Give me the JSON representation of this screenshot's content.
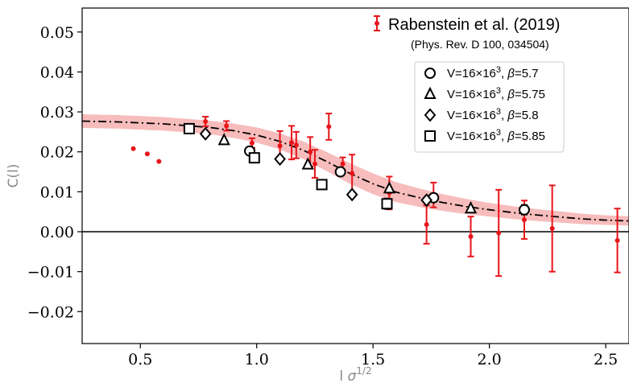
{
  "chart_data": {
    "type": "scatter",
    "xlabel": "l σ^1/2",
    "ylabel": "C(l)",
    "xlim": [
      0.25,
      2.6
    ],
    "ylim": [
      -0.028,
      0.056
    ],
    "x_ticks": [
      0.5,
      1.0,
      1.5,
      2.0,
      2.5
    ],
    "x_tick_labels": [
      "0.5",
      "1.0",
      "1.5",
      "2.0",
      "2.5"
    ],
    "y_ticks": [
      -0.02,
      -0.01,
      0.0,
      0.01,
      0.02,
      0.03,
      0.04,
      0.05
    ],
    "y_tick_labels": [
      "−0.02",
      "−0.01",
      "0.00",
      "0.01",
      "0.02",
      "0.03",
      "0.04",
      "0.05"
    ],
    "grid": false,
    "zero_line": true,
    "legend_primary": {
      "label": "Rabenstein et al. (2019)",
      "sublabel": "(Phys. Rev. D 100, 034504)",
      "placement": "top-right"
    },
    "fit_curve": {
      "style": "dash-dot",
      "color": "#000000",
      "band_color": "#f4a6a6",
      "x": [
        0.25,
        0.4,
        0.6,
        0.8,
        0.9,
        1.0,
        1.1,
        1.2,
        1.3,
        1.4,
        1.5,
        1.6,
        1.7,
        1.8,
        1.9,
        2.0,
        2.1,
        2.2,
        2.3,
        2.4,
        2.5,
        2.6
      ],
      "y": [
        0.0277,
        0.0275,
        0.027,
        0.0261,
        0.0253,
        0.0242,
        0.0226,
        0.0204,
        0.0176,
        0.0146,
        0.012,
        0.0099,
        0.0085,
        0.0073,
        0.0063,
        0.0055,
        0.0048,
        0.0042,
        0.0037,
        0.0032,
        0.0029,
        0.0027
      ],
      "band_halfwidth": [
        0.0017,
        0.0017,
        0.0017,
        0.0017,
        0.0018,
        0.0019,
        0.002,
        0.0022,
        0.0024,
        0.0026,
        0.0026,
        0.0025,
        0.0023,
        0.0021,
        0.0019,
        0.0017,
        0.0016,
        0.0015,
        0.0014,
        0.0013,
        0.0012,
        0.0012
      ]
    },
    "series": [
      {
        "name": "Rabenstein et al. (2019)",
        "marker": "dot",
        "color": "#e8141a",
        "points": [
          {
            "x": 0.47,
            "y": 0.0208,
            "err": 0
          },
          {
            "x": 0.53,
            "y": 0.0195,
            "err": 0
          },
          {
            "x": 0.58,
            "y": 0.0176,
            "err": 0
          },
          {
            "x": 0.78,
            "y": 0.0276,
            "err": 0.0012
          },
          {
            "x": 0.87,
            "y": 0.0265,
            "err": 0.0012
          },
          {
            "x": 0.98,
            "y": 0.0222,
            "err": 0.0012
          },
          {
            "x": 1.1,
            "y": 0.0215,
            "err": 0.0037
          },
          {
            "x": 1.15,
            "y": 0.0223,
            "err": 0.0042
          },
          {
            "x": 1.17,
            "y": 0.0217,
            "err": 0.0033
          },
          {
            "x": 1.23,
            "y": 0.02,
            "err": 0.0037
          },
          {
            "x": 1.25,
            "y": 0.017,
            "err": 0.0035
          },
          {
            "x": 1.31,
            "y": 0.0263,
            "err": 0.0033
          },
          {
            "x": 1.37,
            "y": 0.017,
            "err": 0.0016
          },
          {
            "x": 1.41,
            "y": 0.0146,
            "err": 0.0047
          },
          {
            "x": 1.57,
            "y": 0.0097,
            "err": 0.0041
          },
          {
            "x": 1.73,
            "y": 0.0018,
            "err": 0.0048
          },
          {
            "x": 1.76,
            "y": 0.0092,
            "err": 0.0031
          },
          {
            "x": 1.92,
            "y": -0.0012,
            "err": 0.005
          },
          {
            "x": 2.04,
            "y": -0.0003,
            "err": 0.0108
          },
          {
            "x": 2.15,
            "y": 0.003,
            "err": 0.0048
          },
          {
            "x": 2.27,
            "y": 0.0008,
            "err": 0.0108
          },
          {
            "x": 2.55,
            "y": -0.0022,
            "err": 0.008
          }
        ]
      },
      {
        "name": "V=16×16³, β=5.7",
        "marker": "circle",
        "color": "#000000",
        "points": [
          {
            "x": 0.97,
            "y": 0.0202,
            "err": 0
          },
          {
            "x": 1.36,
            "y": 0.015,
            "err": 0
          },
          {
            "x": 1.76,
            "y": 0.0085,
            "err": 0.0005
          },
          {
            "x": 2.15,
            "y": 0.0055,
            "err": 0.0012
          }
        ]
      },
      {
        "name": "V=16×16³, β=5.75",
        "marker": "triangle",
        "color": "#000000",
        "points": [
          {
            "x": 0.86,
            "y": 0.0229,
            "err": 0
          },
          {
            "x": 1.22,
            "y": 0.0168,
            "err": 0
          },
          {
            "x": 1.57,
            "y": 0.0108,
            "err": 0
          },
          {
            "x": 1.92,
            "y": 0.0058,
            "err": 0
          }
        ]
      },
      {
        "name": "V=16×16³, β=5.8",
        "marker": "diamond",
        "color": "#000000",
        "points": [
          {
            "x": 0.78,
            "y": 0.0245,
            "err": 0
          },
          {
            "x": 1.1,
            "y": 0.0182,
            "err": 0
          },
          {
            "x": 1.41,
            "y": 0.0093,
            "err": 0
          },
          {
            "x": 1.73,
            "y": 0.0079,
            "err": 0
          }
        ]
      },
      {
        "name": "V=16×16³, β=5.85",
        "marker": "square",
        "color": "#000000",
        "points": [
          {
            "x": 0.71,
            "y": 0.0258,
            "err": 0
          },
          {
            "x": 0.99,
            "y": 0.0185,
            "err": 0
          },
          {
            "x": 1.28,
            "y": 0.0118,
            "err": 0
          },
          {
            "x": 1.56,
            "y": 0.007,
            "err": 0.0013
          }
        ]
      }
    ]
  }
}
